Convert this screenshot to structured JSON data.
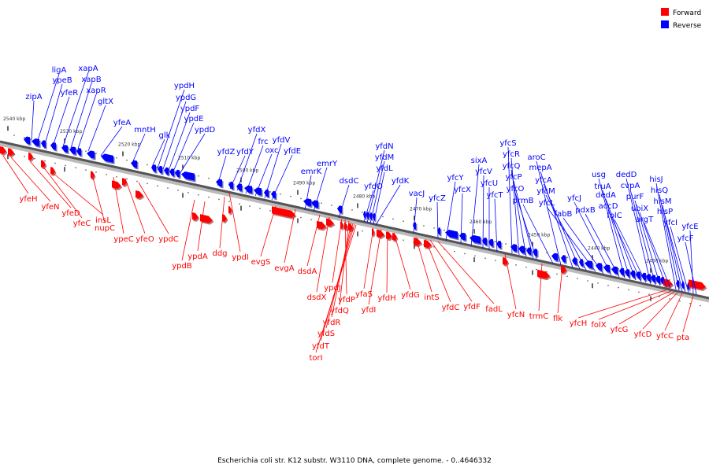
{
  "caption": "Escherichia coli str. K12 substr. W3110 DNA, complete genome. - 0..4646332",
  "legend": [
    {
      "label": "Forward",
      "color": "#ff0000"
    },
    {
      "label": "Reverse",
      "color": "#0000ff"
    }
  ],
  "colors": {
    "forward": "#ff0000",
    "reverse": "#0000ff",
    "axis": "#555555"
  },
  "ticks": [
    "2540 kbp",
    "2530 kbp",
    "2520 kbp",
    "2510 kbp",
    "2500 kbp",
    "2490 kbp",
    "2480 kbp",
    "2470 kbp",
    "2460 kbp",
    "2450 kbp",
    "2440 kbp",
    "2430 kbp"
  ],
  "genes_reverse": [
    "zipA",
    "ligA",
    "ypeB",
    "yfeR",
    "xapA",
    "xapB",
    "xapR",
    "gltX",
    "yfeA",
    "mntH",
    "glk",
    "ypdH",
    "ypdG",
    "ypdF",
    "ypdE",
    "ypdD",
    "yfdZ",
    "yfdY",
    "yfdX",
    "frc",
    "oxc",
    "yfdV",
    "yfdE",
    "emrK",
    "emrY",
    "dsdC",
    "yfdO",
    "yfdN",
    "yfdM",
    "yfdL",
    "yfdK",
    "vacJ",
    "yfcZ",
    "yfcY",
    "yfcX",
    "sixA",
    "yfcV",
    "yfcU",
    "yfcT",
    "yfcS",
    "yfcR",
    "yfcQ",
    "yfcP",
    "yfcO",
    "prmB",
    "aroC",
    "mepA",
    "yfcA",
    "yfcM",
    "yfcL",
    "fabB",
    "yfcJ",
    "pdxB",
    "usg",
    "truA",
    "dedA",
    "accD",
    "folC",
    "dedD",
    "cvpA",
    "purF",
    "ubiX",
    "argT",
    "hisJ",
    "hisQ",
    "hisM",
    "hisP",
    "yfcI",
    "yfcE",
    "yfcF"
  ],
  "genes_forward": [
    "yfeH",
    "yfeN",
    "yfeD",
    "yfeC",
    "insL",
    "nupC",
    "ypeC",
    "yfeO",
    "ypdC",
    "ypdB",
    "ypdA",
    "ddg",
    "ypdI",
    "evgS",
    "evgA",
    "dsdA",
    "dsdX",
    "ypdJ",
    "yfdP",
    "yfdQ",
    "yfdR",
    "yfdS",
    "yfdT",
    "torI",
    "yfaS",
    "yfdI",
    "yfdH",
    "yfdG",
    "intS",
    "yfdC",
    "yfdF",
    "fadL",
    "yfcN",
    "trmC",
    "flk",
    "yfcH",
    "folX",
    "yfcG",
    "yfcD",
    "yfcC",
    "pta"
  ]
}
